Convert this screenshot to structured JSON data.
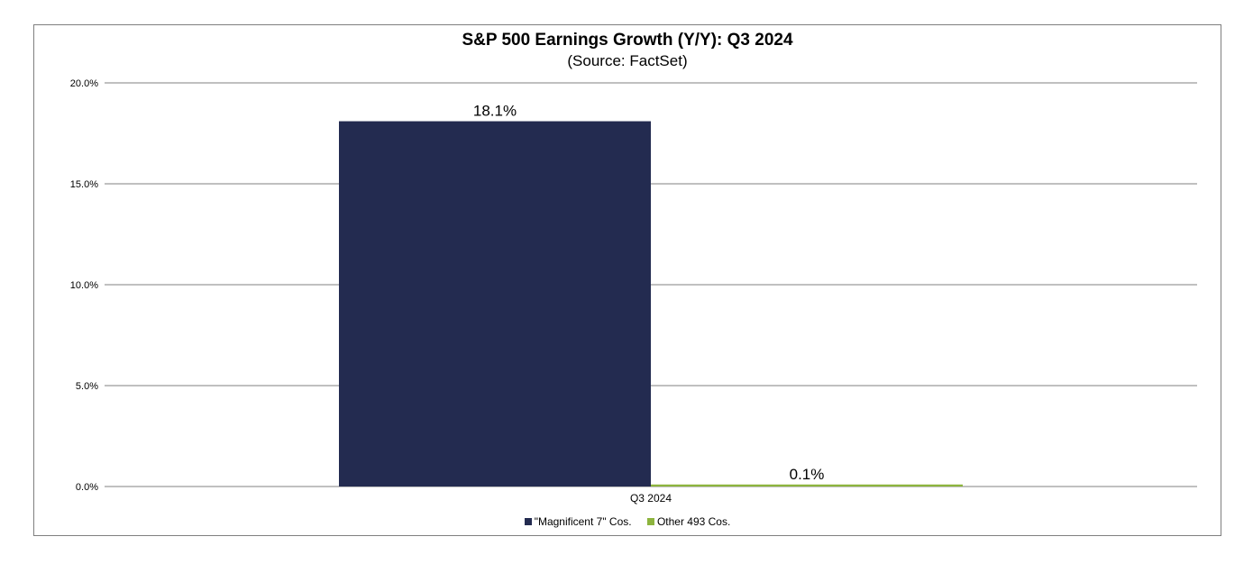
{
  "chart_data": {
    "type": "bar",
    "title": "S&P 500 Earnings Growth (Y/Y): Q3 2024",
    "subtitle": "(Source: FactSet)",
    "categories": [
      "Q3 2024"
    ],
    "series": [
      {
        "name": "\"Magnificent 7\" Cos.",
        "values": [
          18.1
        ],
        "color": "#232b50",
        "label": "18.1%"
      },
      {
        "name": "Other 493 Cos.",
        "values": [
          0.1
        ],
        "color": "#8db43e",
        "label": "0.1%"
      }
    ],
    "xlabel": "",
    "ylabel": "",
    "ylim": [
      0,
      20
    ],
    "yticks": [
      "0.0%",
      "5.0%",
      "10.0%",
      "15.0%",
      "20.0%"
    ],
    "grid": true,
    "legend_position": "bottom"
  }
}
